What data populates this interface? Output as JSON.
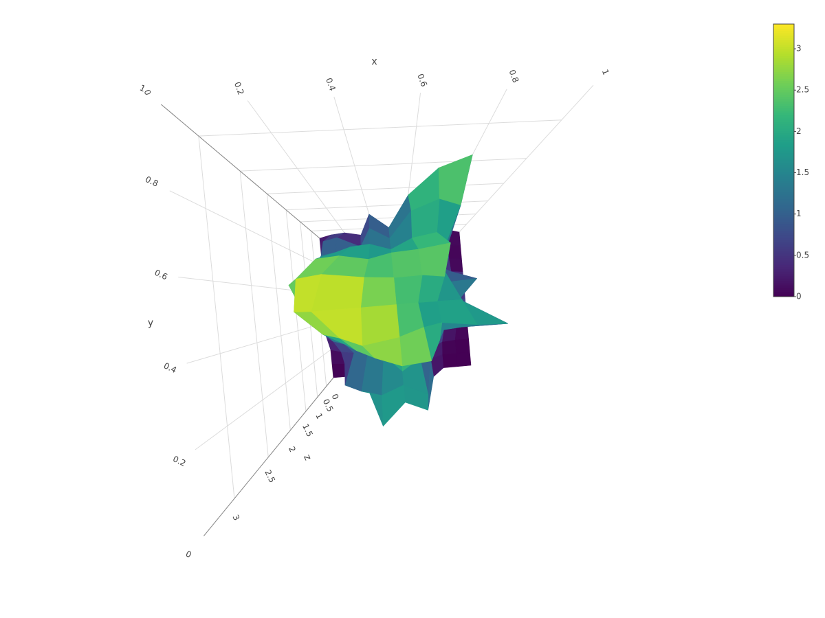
{
  "chart_data": {
    "type": "surface",
    "xaxis_title": "x",
    "yaxis_title": "y",
    "zaxis_title": "z",
    "xlim": [
      0,
      1
    ],
    "ylim": [
      0,
      1
    ],
    "zlim": [
      0,
      3.3
    ],
    "xticks": [
      0,
      0.2,
      0.4,
      0.6,
      0.8,
      1
    ],
    "yticks": [
      0,
      0.2,
      0.4,
      0.6,
      0.8,
      1
    ],
    "zticks": [
      0,
      0.5,
      1,
      1.5,
      2,
      2.5,
      3
    ],
    "grid": true,
    "colorscale": [
      [
        0,
        "#440154"
      ],
      [
        0.111,
        "#482878"
      ],
      [
        0.222,
        "#3e4989"
      ],
      [
        0.333,
        "#31688e"
      ],
      [
        0.444,
        "#26828e"
      ],
      [
        0.556,
        "#1f9e89"
      ],
      [
        0.667,
        "#35b779"
      ],
      [
        0.778,
        "#6ece58"
      ],
      [
        0.889,
        "#b5de2b"
      ],
      [
        1,
        "#fde725"
      ]
    ],
    "cmin": 0,
    "cmax": 3.3,
    "colorbar_ticks": [
      0,
      0.5,
      1,
      1.5,
      2,
      2.5,
      3
    ],
    "x": [
      0,
      0.1,
      0.2,
      0.3,
      0.4,
      0.5,
      0.6,
      0.7,
      0.8,
      0.9,
      1
    ],
    "y": [
      0,
      0.1,
      0.2,
      0.3,
      0.4,
      0.5,
      0.6,
      0.7,
      0.8,
      0.9,
      1
    ],
    "z": [
      [
        0,
        0,
        0.2,
        1.0,
        2.1,
        1.5,
        1.8,
        0.5,
        0,
        0,
        0
      ],
      [
        0,
        0.1,
        1.4,
        1.7,
        1.9,
        1.6,
        2.0,
        0.3,
        0,
        0,
        0
      ],
      [
        0,
        0.3,
        0.5,
        0.8,
        0.9,
        1.9,
        1.3,
        0.6,
        0.1,
        0,
        0
      ],
      [
        0.2,
        0.8,
        1.2,
        1.8,
        2.3,
        2.7,
        2.6,
        1.5,
        0.4,
        0.2,
        0
      ],
      [
        0.5,
        1.4,
        2.2,
        2.6,
        3.1,
        2.8,
        2.2,
        1.8,
        2.3,
        2.4,
        0
      ],
      [
        0.8,
        2.0,
        2.9,
        3.3,
        3.0,
        2.5,
        1.8,
        1.6,
        1.8,
        0.6,
        0
      ],
      [
        1.2,
        2.3,
        2.8,
        3.0,
        2.6,
        2.4,
        2.5,
        2.2,
        1.3,
        1.6,
        0
      ],
      [
        0.3,
        1.5,
        2.2,
        2.3,
        2.0,
        2.3,
        2.4,
        2.6,
        0.8,
        0.2,
        0
      ],
      [
        0,
        1.0,
        1.2,
        1.5,
        1.6,
        1.2,
        1.8,
        2.0,
        1.0,
        0.1,
        0
      ],
      [
        0,
        0.8,
        1.0,
        0.3,
        1.4,
        0.8,
        2.0,
        2.3,
        2.1,
        0.1,
        0
      ],
      [
        0,
        0.2,
        0.3,
        0.1,
        1.2,
        0.5,
        1.8,
        2.4,
        2.6,
        0.2,
        0
      ]
    ]
  }
}
